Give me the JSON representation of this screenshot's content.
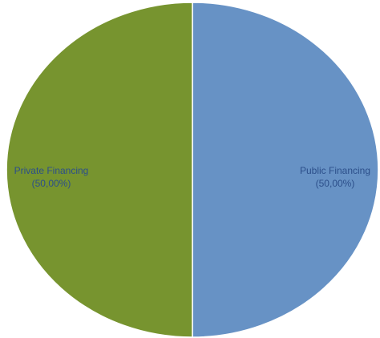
{
  "chart_data": {
    "type": "pie",
    "title": "",
    "slices": [
      {
        "label": "Public Financing",
        "value_text": "(50,00%)",
        "value": 50.0,
        "color": "#6792c5",
        "label_color": "#2c4f8a"
      },
      {
        "label": "Private Financing",
        "value_text": "(50,00%)",
        "value": 50.0,
        "color": "#77942f",
        "label_color": "#2c4f8a"
      }
    ],
    "legend": "none",
    "slice_border_color": "#ffffff"
  }
}
